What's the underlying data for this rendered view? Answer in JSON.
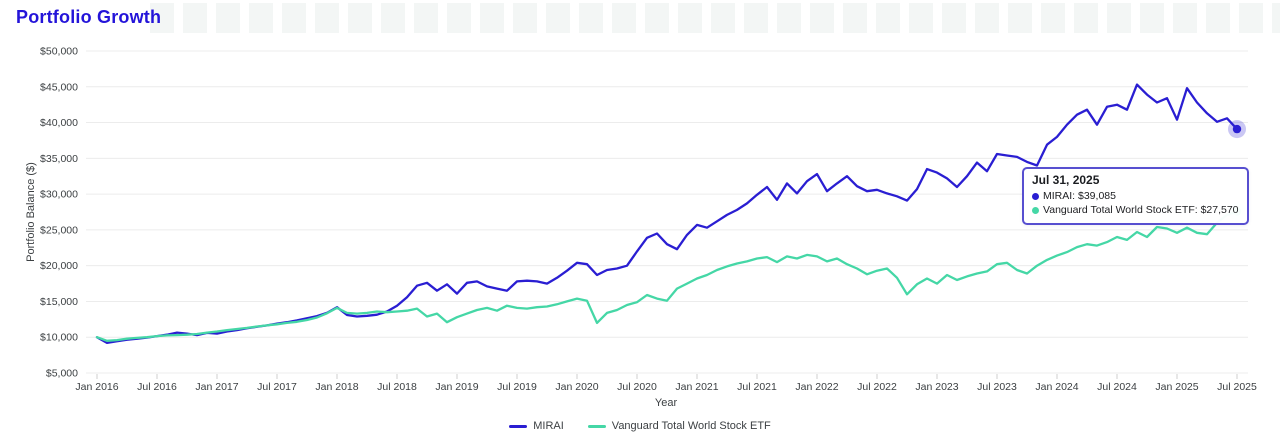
{
  "page": {
    "title": "Portfolio Growth"
  },
  "chart_data": {
    "type": "line",
    "title": "Portfolio Growth",
    "xlabel": "Year",
    "ylabel": "Portfolio Balance ($)",
    "ylim": [
      5000,
      50000
    ],
    "ytick_step": 5000,
    "yticks": [
      "$5,000",
      "$10,000",
      "$15,000",
      "$20,000",
      "$25,000",
      "$30,000",
      "$35,000",
      "$40,000",
      "$45,000",
      "$50,000"
    ],
    "xticks": [
      "Jan 2016",
      "Jul 2016",
      "Jan 2017",
      "Jul 2017",
      "Jan 2018",
      "Jul 2018",
      "Jan 2019",
      "Jul 2019",
      "Jan 2020",
      "Jul 2020",
      "Jan 2021",
      "Jul 2021",
      "Jan 2022",
      "Jul 2022",
      "Jan 2023",
      "Jul 2023",
      "Jan 2024",
      "Jul 2024",
      "Jan 2025",
      "Jul 2025"
    ],
    "xtick_every": 6,
    "frequency": "monthly",
    "x_start": "Jan 2016",
    "x_end": "Jul 31, 2025",
    "grid": "horizontal",
    "legend_position": "bottom",
    "series": [
      {
        "name": "MIRAI",
        "color": "#2a1ed2",
        "final_value": 39085,
        "values": [
          10000,
          9200,
          9450,
          9650,
          9800,
          9950,
          10150,
          10350,
          10650,
          10500,
          10300,
          10600,
          10500,
          10800,
          11000,
          11250,
          11450,
          11650,
          11900,
          12100,
          12350,
          12650,
          12950,
          13400,
          14200,
          13100,
          12900,
          13000,
          13150,
          13600,
          14400,
          15600,
          17200,
          17600,
          16500,
          17400,
          16100,
          17600,
          17800,
          17100,
          16800,
          16500,
          17800,
          17900,
          17800,
          17500,
          18300,
          19300,
          20400,
          20200,
          18700,
          19400,
          19600,
          20000,
          22000,
          23900,
          24500,
          23000,
          22300,
          24300,
          25700,
          25300,
          26200,
          27100,
          27800,
          28700,
          29900,
          31000,
          29200,
          31500,
          30100,
          31800,
          32800,
          30400,
          31500,
          32500,
          31100,
          30400,
          30600,
          30100,
          29700,
          29100,
          30700,
          33500,
          33000,
          32200,
          31000,
          32500,
          34400,
          33200,
          35600,
          35400,
          35200,
          34500,
          34000,
          36900,
          38000,
          39700,
          41100,
          41800,
          39700,
          42200,
          42500,
          41800,
          45300,
          43900,
          42800,
          43400,
          40400,
          44800,
          42800,
          41300,
          40100,
          40600,
          39085
        ]
      },
      {
        "name": "Vanguard Total World Stock ETF",
        "color": "#45d7a6",
        "final_value": 27570,
        "values": [
          10000,
          9500,
          9600,
          9800,
          9900,
          10000,
          10150,
          10250,
          10300,
          10350,
          10450,
          10650,
          10800,
          11000,
          11150,
          11300,
          11500,
          11650,
          11800,
          12000,
          12150,
          12400,
          12750,
          13350,
          14100,
          13400,
          13300,
          13400,
          13600,
          13500,
          13600,
          13700,
          14000,
          12900,
          13300,
          12100,
          12800,
          13300,
          13800,
          14100,
          13700,
          14400,
          14100,
          14000,
          14200,
          14300,
          14600,
          15000,
          15400,
          15100,
          12000,
          13400,
          13800,
          14500,
          14900,
          15900,
          15400,
          15100,
          16800,
          17500,
          18200,
          18700,
          19400,
          19900,
          20300,
          20600,
          21000,
          21200,
          20500,
          21300,
          21000,
          21500,
          21300,
          20600,
          21000,
          20200,
          19600,
          18800,
          19300,
          19600,
          18300,
          16000,
          17400,
          18200,
          17500,
          18700,
          18000,
          18500,
          18900,
          19200,
          20200,
          20400,
          19400,
          18900,
          20000,
          20800,
          21400,
          21900,
          22600,
          23000,
          22800,
          23300,
          24000,
          23600,
          24700,
          24000,
          25400,
          25200,
          24600,
          25300,
          24600,
          24400,
          26000,
          27100,
          27570
        ]
      }
    ]
  },
  "tooltip": {
    "date": "Jul 31, 2025",
    "items": [
      {
        "label": "MIRAI",
        "value": "$39,085",
        "text": "MIRAI: $39,085",
        "color": "#2a1ed2"
      },
      {
        "label": "Vanguard Total World Stock ETF",
        "value": "$27,570",
        "text": "Vanguard Total World Stock ETF: $27,570",
        "color": "#45d7a6"
      }
    ]
  },
  "legend": {
    "items": [
      {
        "label": "MIRAI",
        "color": "#2a1ed2"
      },
      {
        "label": "Vanguard Total World Stock ETF",
        "color": "#45d7a6"
      }
    ]
  }
}
